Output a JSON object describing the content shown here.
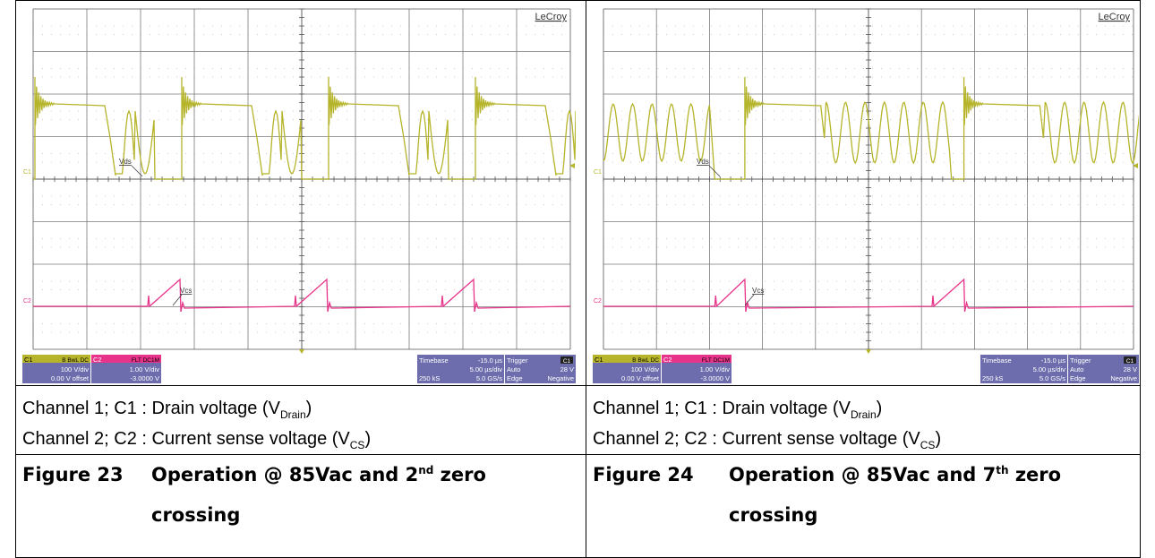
{
  "colors": {
    "ch1_trace": "#b5b42a",
    "ch2_trace": "#e8338a",
    "grid_dot": "#9a9a9a",
    "grid_solid": "#7a7a7a",
    "panel_bg": "#6d6dad",
    "panel_text": "#ffffff"
  },
  "left": {
    "brand": "LeCroy",
    "ch1_marker": "C1",
    "ch2_marker": "C2",
    "ch1_trace_label": "Vds",
    "ch2_trace_label": "Vcs",
    "panel": {
      "c1_tag": "C1",
      "c1_flags": "B BwL DC",
      "c1_vdiv": "100 V/div",
      "c1_offset": "0.00 V offset",
      "c2_tag": "C2",
      "c2_flags": "FLT DC1M",
      "c2_vdiv": "1.00 V/div",
      "c2_offset": "-3.0000 V",
      "timebase_label": "Timebase",
      "timebase_value": "-15.0 µs",
      "time_div": "5.00 µs/div",
      "samples": "250 kS",
      "sample_rate": "5.0 GS/s",
      "trigger_label": "Trigger",
      "trigger_ch": "C1",
      "trigger_mode": "Auto",
      "trigger_level": "28 V",
      "trigger_type": "Edge",
      "trigger_slope": "Negative"
    },
    "caption_line1_a": "Channel 1; C1 : Drain voltage (V",
    "caption_line1_sub": "Drain",
    "caption_line1_b": ")",
    "caption_line2_a": "Channel 2; C2 : Current sense voltage (V",
    "caption_line2_sub": "CS",
    "caption_line2_b": ")",
    "figure_number": "Figure 23",
    "figure_title_a": "Operation @ 85Vac and 2",
    "figure_title_sup": "nd",
    "figure_title_b": " zero",
    "figure_title_line2": "crossing"
  },
  "right": {
    "brand": "LeCroy",
    "ch1_marker": "C1",
    "ch2_marker": "C2",
    "ch1_trace_label": "Vds",
    "ch2_trace_label": "Vcs",
    "panel": {
      "c1_tag": "C1",
      "c1_flags": "B BwL DC",
      "c1_vdiv": "100 V/div",
      "c1_offset": "0.00 V offset",
      "c2_tag": "C2",
      "c2_flags": "FLT DC1M",
      "c2_vdiv": "1.00 V/div",
      "c2_offset": "-3.0000 V",
      "timebase_label": "Timebase",
      "timebase_value": "-15.0 µs",
      "time_div": "5.00 µs/div",
      "samples": "250 kS",
      "sample_rate": "5.0 GS/s",
      "trigger_label": "Trigger",
      "trigger_ch": "C1",
      "trigger_mode": "Auto",
      "trigger_level": "28 V",
      "trigger_type": "Edge",
      "trigger_slope": "Negative"
    },
    "caption_line1_a": "Channel 1; C1 : Drain voltage (V",
    "caption_line1_sub": "Drain",
    "caption_line1_b": ")",
    "caption_line2_a": "Channel 2; C2 : Current sense voltage (V",
    "caption_line2_sub": "CS",
    "caption_line2_b": ")",
    "figure_number": "Figure 24",
    "figure_title_a": "Operation @ 85Vac and 7",
    "figure_title_sup": "th",
    "figure_title_b": "  zero",
    "figure_title_line2": "crossing"
  }
}
